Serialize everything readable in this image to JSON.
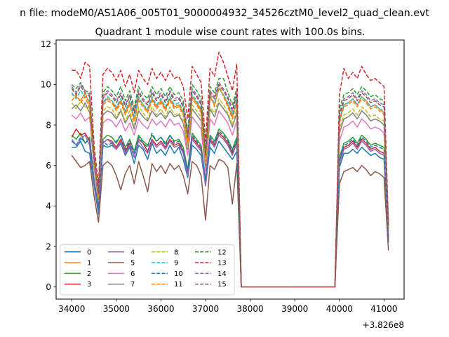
{
  "figure": {
    "suptitle": "n file: modeM0/AS1A06_005T01_9000004932_34526cztM0_level2_quad_clean.evt"
  },
  "chart_data": {
    "type": "line",
    "title": "Quadrant 1 module wise count rates with 100.0s bins.",
    "xlabel": "",
    "ylabel": "",
    "x_offset_label": "+3.826e8",
    "x_offset": 382600000,
    "xlim": [
      33650,
      41450
    ],
    "ylim": [
      -0.6,
      12.2
    ],
    "xticks": [
      34000,
      35000,
      36000,
      37000,
      38000,
      39000,
      40000,
      41000
    ],
    "xtick_labels": [
      "34000",
      "35000",
      "36000",
      "37000",
      "38000",
      "39000",
      "40000",
      "41000"
    ],
    "yticks": [
      0,
      2,
      4,
      6,
      8,
      10,
      12
    ],
    "ytick_labels": [
      "0",
      "2",
      "4",
      "6",
      "8",
      "10",
      "12"
    ],
    "grid": false,
    "legend_position": "lower-left",
    "legend_columns": 4,
    "x": [
      34000,
      34100,
      34200,
      34300,
      34400,
      34500,
      34600,
      34700,
      34800,
      34900,
      35000,
      35100,
      35200,
      35300,
      35400,
      35500,
      35600,
      35700,
      35800,
      35900,
      36000,
      36100,
      36200,
      36300,
      36400,
      36500,
      36600,
      36700,
      36800,
      36900,
      37000,
      37100,
      37200,
      37300,
      37400,
      37500,
      37600,
      37700,
      37800,
      37900,
      38000,
      39800,
      39900,
      40000,
      40100,
      40200,
      40300,
      40400,
      40500,
      40600,
      40700,
      40800,
      40900,
      41000,
      41100
    ],
    "series": [
      {
        "name": "0",
        "color": "#1f77b4",
        "dash": "solid",
        "values": [
          6.9,
          6.9,
          7.2,
          6.7,
          6.6,
          5.0,
          3.6,
          7.0,
          6.9,
          7.0,
          6.8,
          7.1,
          6.5,
          6.9,
          6.1,
          7.0,
          6.8,
          6.3,
          7.1,
          6.6,
          6.8,
          6.5,
          7.0,
          6.6,
          6.9,
          6.3,
          5.4,
          7.0,
          6.8,
          6.5,
          5.0,
          6.9,
          6.6,
          7.2,
          6.9,
          6.6,
          6.3,
          6.7,
          0,
          0,
          0,
          0,
          0,
          5.9,
          6.6,
          6.6,
          6.8,
          6.6,
          6.9,
          6.7,
          6.5,
          6.6,
          6.4,
          6.3,
          2.2
        ]
      },
      {
        "name": "1",
        "color": "#ff7f0e",
        "dash": "solid",
        "values": [
          9.5,
          9.4,
          9.2,
          9.6,
          9.0,
          6.3,
          4.5,
          9.1,
          9.3,
          9.2,
          8.8,
          9.2,
          8.6,
          9.1,
          8.3,
          9.3,
          9.0,
          8.7,
          9.3,
          8.9,
          9.2,
          8.8,
          9.3,
          8.9,
          9.0,
          8.6,
          7.2,
          9.4,
          9.1,
          8.7,
          6.3,
          9.4,
          9.0,
          9.8,
          9.5,
          9.0,
          8.4,
          9.2,
          0,
          0,
          0,
          0,
          0,
          8.2,
          9.0,
          9.1,
          9.3,
          9.0,
          9.4,
          9.2,
          8.9,
          9.0,
          8.8,
          8.6,
          2.9
        ]
      },
      {
        "name": "2",
        "color": "#2ca02c",
        "dash": "solid",
        "values": [
          7.5,
          7.3,
          7.6,
          7.1,
          7.4,
          5.3,
          3.9,
          7.3,
          7.5,
          7.4,
          7.1,
          7.5,
          6.9,
          7.3,
          6.7,
          7.5,
          7.2,
          7.0,
          7.5,
          7.2,
          7.4,
          7.1,
          7.5,
          7.2,
          7.3,
          6.9,
          5.8,
          7.6,
          7.3,
          7.0,
          5.2,
          7.5,
          7.2,
          7.8,
          7.6,
          7.3,
          6.8,
          7.4,
          0,
          0,
          0,
          0,
          0,
          6.4,
          7.1,
          7.2,
          7.4,
          7.1,
          7.5,
          7.3,
          7.0,
          7.1,
          7.0,
          6.9,
          2.4
        ]
      },
      {
        "name": "3",
        "color": "#d62728",
        "dash": "solid",
        "values": [
          7.4,
          7.8,
          7.5,
          7.6,
          7.2,
          5.2,
          3.8,
          7.1,
          7.3,
          7.2,
          6.9,
          7.3,
          6.7,
          7.1,
          6.4,
          7.3,
          7.1,
          6.7,
          7.3,
          7.0,
          7.2,
          6.9,
          7.3,
          7.0,
          7.1,
          6.7,
          5.6,
          7.4,
          7.1,
          6.8,
          5.1,
          7.3,
          7.0,
          7.6,
          7.4,
          7.1,
          6.6,
          7.2,
          0,
          0,
          0,
          0,
          0,
          6.2,
          6.9,
          7.0,
          7.2,
          6.9,
          7.3,
          7.1,
          6.8,
          6.9,
          6.7,
          6.6,
          2.3
        ]
      },
      {
        "name": "4",
        "color": "#9467bd",
        "dash": "solid",
        "values": [
          7.3,
          7.0,
          7.3,
          7.5,
          7.0,
          5.1,
          3.7,
          7.1,
          7.3,
          7.1,
          6.8,
          7.2,
          6.6,
          7.0,
          6.4,
          7.2,
          6.9,
          6.6,
          7.2,
          6.9,
          7.1,
          6.8,
          7.2,
          6.9,
          7.0,
          6.6,
          5.5,
          7.3,
          7.0,
          6.7,
          5.0,
          7.2,
          6.9,
          7.5,
          7.3,
          7.0,
          6.5,
          7.1,
          0,
          0,
          0,
          0,
          0,
          6.1,
          6.8,
          6.9,
          7.1,
          6.8,
          7.2,
          7.0,
          6.7,
          6.8,
          6.6,
          6.5,
          2.3
        ]
      },
      {
        "name": "5",
        "color": "#8c564b",
        "dash": "solid",
        "values": [
          6.5,
          6.2,
          5.9,
          6.0,
          6.2,
          4.5,
          3.2,
          6.0,
          6.2,
          6.0,
          5.5,
          4.8,
          5.6,
          6.0,
          5.1,
          6.2,
          5.5,
          4.7,
          6.1,
          5.7,
          6.0,
          5.6,
          6.1,
          5.8,
          6.0,
          5.5,
          4.6,
          6.2,
          6.0,
          5.5,
          3.3,
          6.0,
          5.8,
          6.3,
          6.2,
          5.9,
          4.1,
          6.1,
          0,
          0,
          0,
          0,
          0,
          5.1,
          5.7,
          5.8,
          5.9,
          5.7,
          6.0,
          5.8,
          5.5,
          5.7,
          5.6,
          5.4,
          1.8
        ]
      },
      {
        "name": "6",
        "color": "#e377c2",
        "dash": "solid",
        "values": [
          8.5,
          8.3,
          8.6,
          8.2,
          8.4,
          5.9,
          4.2,
          8.1,
          8.3,
          8.2,
          7.9,
          8.3,
          7.7,
          8.1,
          7.5,
          8.3,
          8.0,
          7.8,
          8.3,
          8.0,
          8.2,
          7.9,
          8.3,
          8.0,
          8.1,
          7.7,
          6.5,
          8.4,
          8.1,
          7.8,
          5.7,
          8.3,
          8.0,
          8.7,
          8.4,
          8.1,
          7.5,
          8.2,
          0,
          0,
          0,
          0,
          0,
          7.2,
          7.9,
          8.0,
          8.2,
          7.9,
          8.3,
          8.1,
          7.8,
          7.9,
          7.8,
          7.6,
          2.6
        ]
      },
      {
        "name": "7",
        "color": "#7f7f7f",
        "dash": "solid",
        "values": [
          8.8,
          9.0,
          8.7,
          9.1,
          8.6,
          6.1,
          4.3,
          8.5,
          8.7,
          8.6,
          8.3,
          8.7,
          8.1,
          8.5,
          7.8,
          8.7,
          8.4,
          8.2,
          8.7,
          8.4,
          8.6,
          8.3,
          8.7,
          8.4,
          8.5,
          8.1,
          6.8,
          8.8,
          8.5,
          8.2,
          6.0,
          8.8,
          8.4,
          9.1,
          8.8,
          8.5,
          7.9,
          8.6,
          0,
          0,
          0,
          0,
          0,
          7.6,
          8.3,
          8.4,
          8.6,
          8.3,
          8.7,
          8.5,
          8.2,
          8.3,
          8.2,
          8.0,
          2.7
        ]
      },
      {
        "name": "8",
        "color": "#bcbd22",
        "dash": "dashed",
        "values": [
          9.1,
          8.8,
          9.2,
          8.9,
          8.7,
          6.2,
          4.4,
          8.7,
          8.9,
          8.8,
          8.4,
          8.8,
          8.2,
          8.7,
          8.0,
          8.9,
          8.6,
          8.3,
          8.9,
          8.5,
          8.8,
          8.4,
          8.9,
          8.5,
          8.6,
          8.2,
          6.9,
          9.0,
          8.7,
          8.4,
          6.1,
          8.9,
          8.6,
          9.3,
          9.0,
          8.6,
          8.0,
          8.8,
          0,
          0,
          0,
          0,
          0,
          7.8,
          8.5,
          8.6,
          8.8,
          8.5,
          8.9,
          8.7,
          8.4,
          8.5,
          8.3,
          8.2,
          2.8
        ]
      },
      {
        "name": "9",
        "color": "#17becf",
        "dash": "dashed",
        "values": [
          9.6,
          9.3,
          9.7,
          9.4,
          9.2,
          6.4,
          4.6,
          9.1,
          9.4,
          9.2,
          8.9,
          9.3,
          8.7,
          9.2,
          8.4,
          9.4,
          9.0,
          8.8,
          9.4,
          9.0,
          9.3,
          8.9,
          9.4,
          9.0,
          9.1,
          8.7,
          7.3,
          9.5,
          9.2,
          8.8,
          6.4,
          9.4,
          9.1,
          9.8,
          9.5,
          9.1,
          8.5,
          9.3,
          0,
          0,
          0,
          0,
          0,
          8.3,
          9.0,
          9.1,
          9.3,
          9.0,
          9.4,
          9.2,
          8.9,
          9.0,
          8.8,
          8.7,
          2.9
        ]
      },
      {
        "name": "10",
        "color": "#1f77b4",
        "dash": "dashed",
        "values": [
          7.2,
          7.0,
          7.4,
          7.1,
          7.3,
          5.2,
          3.8,
          7.2,
          7.0,
          7.1,
          7.2,
          7.5,
          6.8,
          7.2,
          6.6,
          7.4,
          7.1,
          6.9,
          7.6,
          7.2,
          7.4,
          7.0,
          7.5,
          7.1,
          7.2,
          6.8,
          5.7,
          7.5,
          7.2,
          6.9,
          5.3,
          7.4,
          7.1,
          7.7,
          7.5,
          7.2,
          6.7,
          7.3,
          0,
          0,
          0,
          0,
          0,
          6.3,
          7.0,
          7.1,
          7.3,
          7.0,
          7.4,
          7.2,
          6.9,
          7.0,
          6.9,
          6.8,
          2.4
        ]
      },
      {
        "name": "11",
        "color": "#ff7f0e",
        "dash": "dashed",
        "values": [
          9.2,
          9.5,
          9.1,
          9.4,
          8.8,
          6.3,
          4.5,
          9.0,
          9.2,
          9.1,
          8.7,
          9.1,
          8.5,
          9.0,
          8.2,
          9.2,
          8.9,
          8.6,
          9.2,
          8.8,
          9.1,
          8.7,
          9.2,
          8.8,
          8.9,
          8.5,
          7.1,
          9.3,
          9.0,
          8.6,
          6.2,
          9.6,
          8.9,
          10.0,
          9.4,
          8.9,
          8.3,
          9.1,
          0,
          0,
          0,
          0,
          0,
          8.1,
          8.9,
          9.0,
          9.2,
          8.9,
          9.3,
          9.1,
          8.8,
          8.9,
          8.7,
          8.5,
          2.8
        ]
      },
      {
        "name": "12",
        "color": "#2ca02c",
        "dash": "dashed",
        "values": [
          10.0,
          9.8,
          10.1,
          9.7,
          9.6,
          6.6,
          4.7,
          9.6,
          9.9,
          9.7,
          9.4,
          9.9,
          9.2,
          9.7,
          8.9,
          9.9,
          9.5,
          9.3,
          9.9,
          9.5,
          9.8,
          9.4,
          9.9,
          9.5,
          9.6,
          9.2,
          7.7,
          10.0,
          9.7,
          9.3,
          6.7,
          9.9,
          9.6,
          10.3,
          10.3,
          9.6,
          9.0,
          9.8,
          0,
          0,
          0,
          0,
          0,
          8.8,
          9.5,
          9.6,
          9.8,
          9.5,
          9.9,
          9.7,
          9.4,
          9.5,
          9.3,
          9.2,
          3.0
        ]
      },
      {
        "name": "13",
        "color": "#d62728",
        "dash": "dashed",
        "values": [
          10.7,
          10.7,
          10.3,
          11.1,
          10.9,
          7.0,
          5.0,
          10.5,
          10.8,
          10.6,
          10.2,
          10.7,
          9.9,
          10.5,
          9.6,
          10.7,
          10.3,
          10.0,
          10.8,
          10.3,
          10.6,
          10.2,
          10.7,
          10.3,
          10.4,
          9.9,
          8.3,
          10.9,
          10.5,
          10.1,
          7.2,
          10.8,
          10.4,
          11.6,
          11.1,
          10.4,
          9.7,
          11.0,
          0,
          0,
          0,
          0,
          0,
          9.5,
          10.8,
          10.3,
          10.6,
          10.3,
          10.9,
          10.5,
          10.2,
          10.3,
          10.1,
          9.9,
          3.2
        ]
      },
      {
        "name": "14",
        "color": "#9467bd",
        "dash": "dashed",
        "values": [
          9.9,
          9.6,
          10.0,
          9.7,
          9.5,
          6.5,
          4.6,
          9.4,
          9.7,
          9.5,
          9.2,
          9.6,
          9.0,
          9.5,
          8.7,
          9.7,
          9.3,
          9.1,
          9.7,
          9.3,
          9.6,
          9.2,
          9.7,
          9.3,
          9.4,
          9.0,
          7.5,
          9.8,
          9.5,
          9.1,
          6.6,
          9.7,
          9.4,
          10.1,
          9.8,
          9.4,
          8.8,
          9.6,
          0,
          0,
          0,
          0,
          0,
          8.6,
          9.3,
          9.4,
          9.6,
          9.3,
          9.7,
          9.5,
          9.2,
          9.3,
          9.1,
          9.0,
          3.0
        ]
      },
      {
        "name": "15",
        "color": "#8c564b",
        "dash": "dashed",
        "values": [
          9.8,
          9.5,
          9.9,
          9.6,
          9.4,
          6.4,
          4.6,
          9.3,
          9.6,
          9.4,
          9.1,
          9.5,
          8.9,
          9.4,
          8.6,
          9.6,
          9.2,
          9.0,
          9.6,
          9.2,
          9.5,
          9.1,
          9.6,
          9.2,
          9.3,
          8.9,
          7.4,
          9.7,
          9.4,
          9.0,
          6.5,
          9.6,
          9.3,
          10.0,
          9.7,
          9.3,
          8.7,
          9.5,
          0,
          0,
          0,
          0,
          0,
          8.5,
          9.2,
          9.3,
          9.5,
          9.2,
          9.6,
          9.4,
          9.1,
          9.2,
          9.0,
          8.9,
          2.9
        ]
      }
    ]
  }
}
